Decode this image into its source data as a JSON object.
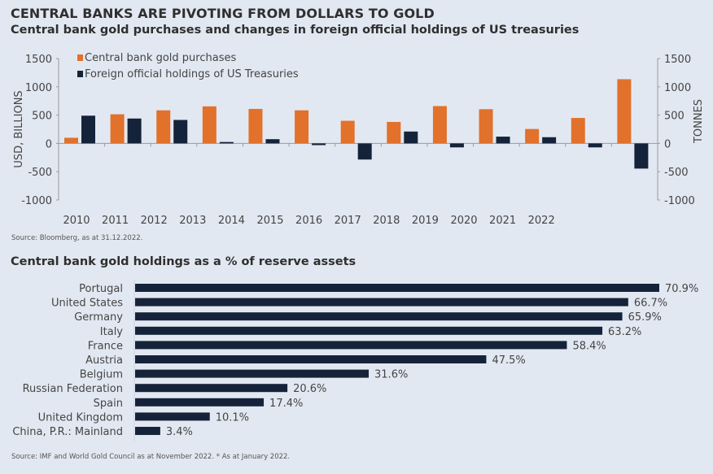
{
  "title": "CENTRAL BANKS ARE PIVOTING FROM DOLLARS TO GOLD",
  "colors": {
    "gold": "#e2712b",
    "navy": "#15233a",
    "axis": "#9a9a9a",
    "background": "#e2e8f1"
  },
  "chart_data": [
    {
      "type": "bar",
      "title": "Central bank gold purchases and changes in foreign official holdings of US treasuries",
      "ylabel": "USD, BILLIONS",
      "y2label": "TONNES",
      "xlabel": "",
      "ylim": [
        -1000,
        1500
      ],
      "y2lim": [
        -1000,
        1500
      ],
      "yticks": [
        1500,
        1000,
        500,
        0,
        -500,
        -1000
      ],
      "y2ticks": [
        1500,
        1000,
        500,
        0,
        -500,
        -1000
      ],
      "categories": [
        "2010",
        "2011",
        "2012",
        "2013",
        "2014",
        "2015",
        "2016",
        "2017",
        "2018",
        "2019",
        "2020",
        "2021",
        "2022"
      ],
      "x_tick_labels": [
        "2010",
        "2011",
        "2012",
        "2013",
        "2014",
        "2015",
        "2016",
        "2017",
        "2018",
        "2019",
        "2020",
        "2021",
        "2022"
      ],
      "legend_position": "top-left",
      "grid": false,
      "series": [
        {
          "name": "Central bank gold purchases",
          "axis": "right",
          "color": "#e2712b",
          "values": [
            100,
            515,
            585,
            655,
            610,
            585,
            400,
            380,
            660,
            605,
            255,
            450,
            1135
          ]
        },
        {
          "name": "Foreign official holdings of US Treasuries",
          "axis": "left",
          "color": "#15233a",
          "values": [
            490,
            440,
            415,
            25,
            75,
            -30,
            -285,
            210,
            -70,
            120,
            110,
            -70,
            -445
          ]
        }
      ],
      "source": "Source: Bloomberg, as at 31.12.2022."
    },
    {
      "type": "bar",
      "orientation": "horizontal",
      "title": "Central bank gold holdings as a % of reserve assets",
      "xlabel": "",
      "ylabel": "",
      "xlim": [
        0,
        75
      ],
      "grid": false,
      "categories": [
        "Portugal",
        "United States",
        "Germany",
        "Italy",
        "France",
        "Austria",
        "Belgium",
        "Russian Federation",
        "Spain",
        "United Kingdom",
        "China, P.R.: Mainland"
      ],
      "values": [
        70.9,
        66.7,
        65.9,
        63.2,
        58.4,
        47.5,
        31.6,
        20.6,
        17.4,
        10.1,
        3.4
      ],
      "labels": [
        "70.9%",
        "66.7%",
        "65.9%",
        "63.2%",
        "58.4%",
        "47.5%",
        "31.6%",
        "20.6%",
        "17.4%",
        "10.1%",
        "3.4%"
      ],
      "color": "#15233a",
      "source": "Source: IMF and World Gold Council as at November 2022. * As at January 2022."
    }
  ]
}
